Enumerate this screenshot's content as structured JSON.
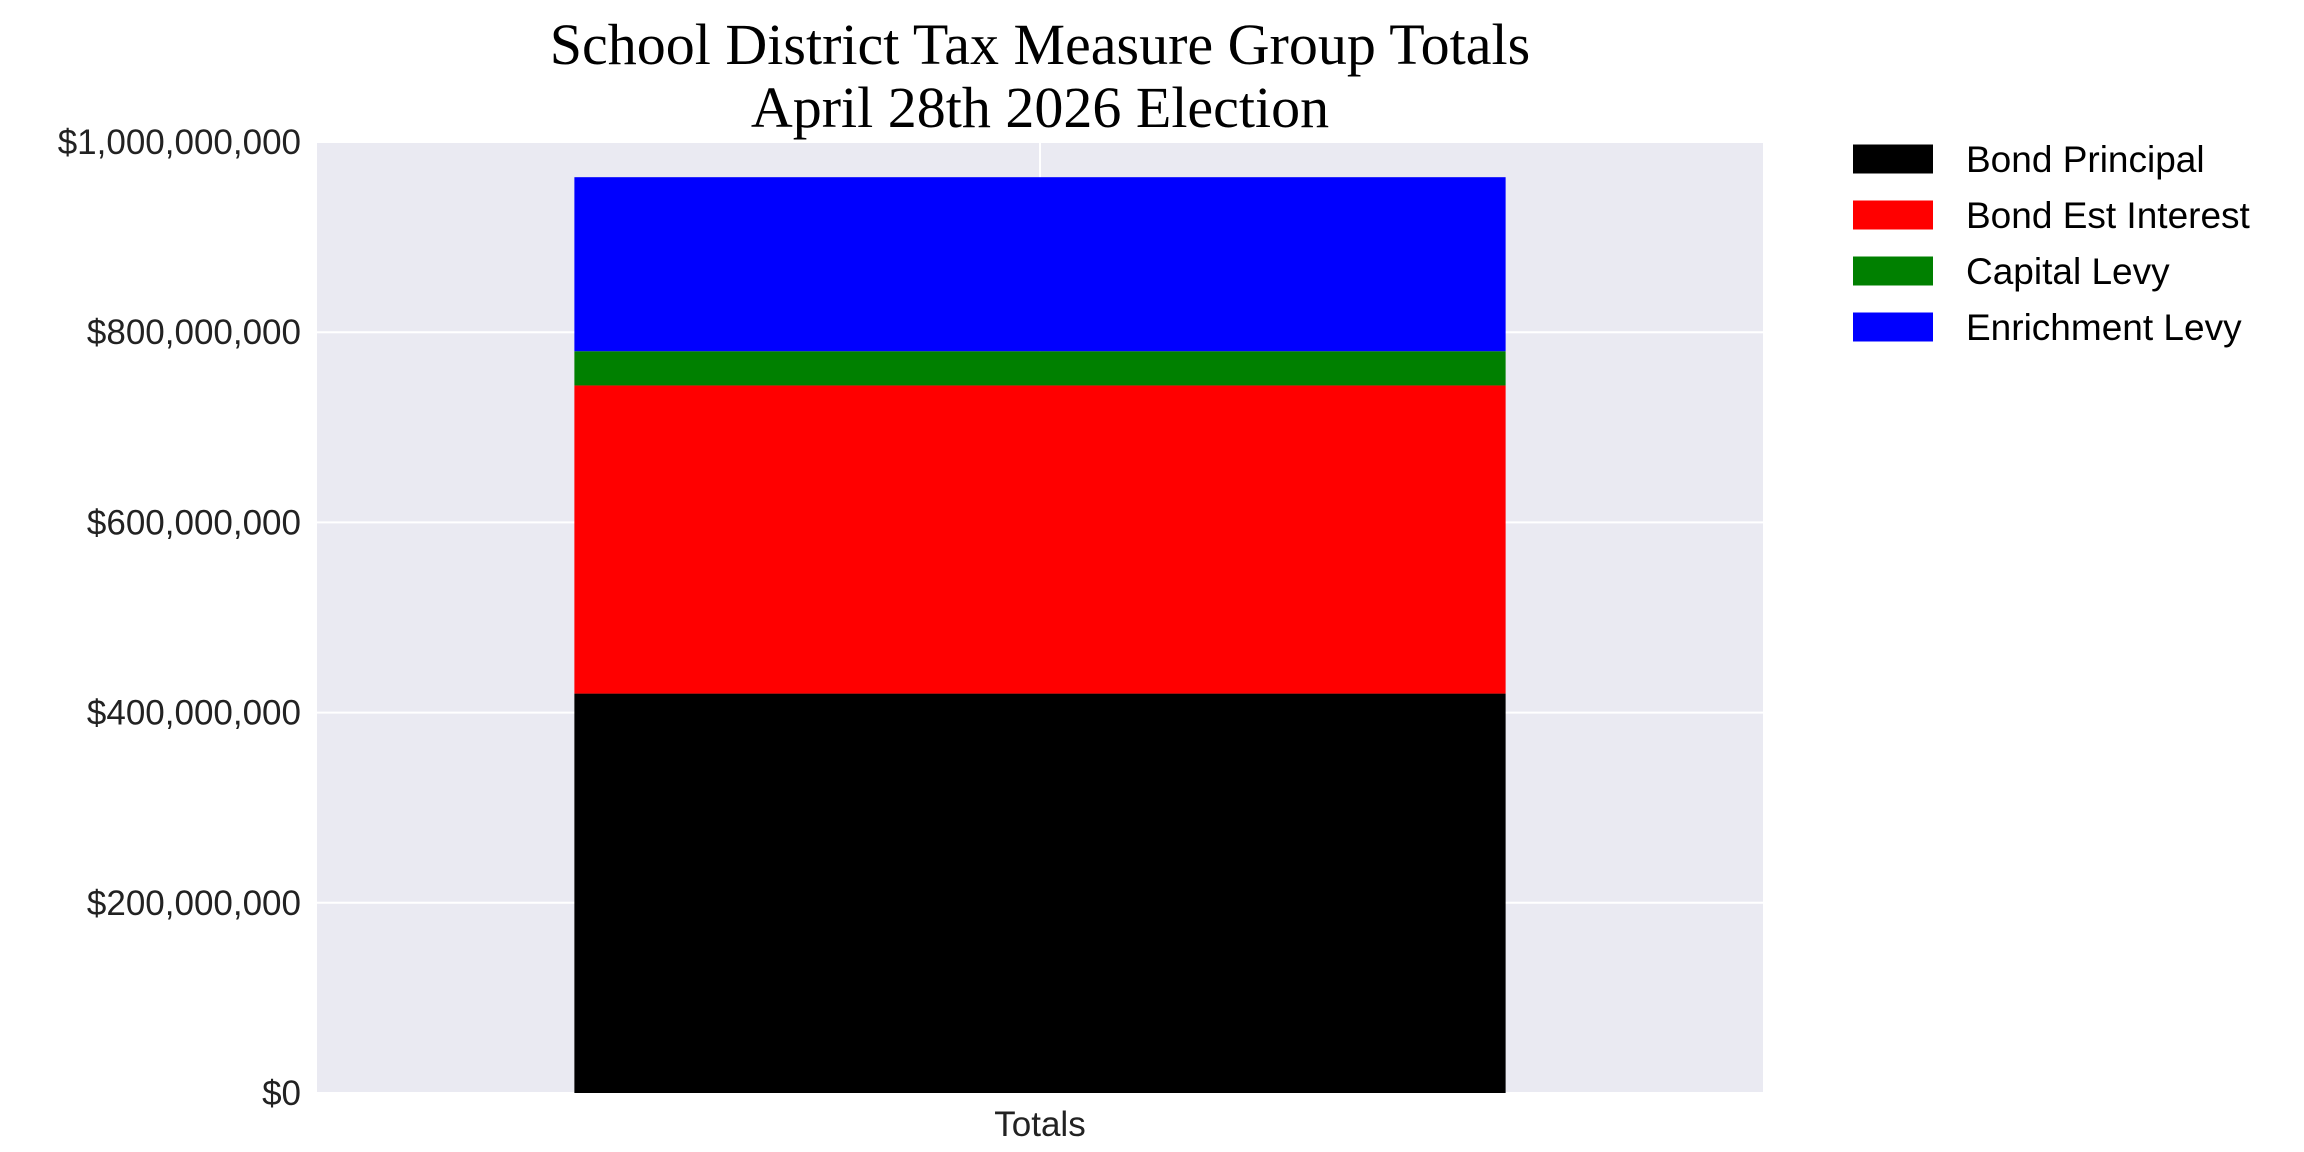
{
  "chart_data": {
    "type": "bar",
    "stacked": true,
    "title": "School District Tax Measure Group Totals",
    "subtitle": "April 28th 2026 Election",
    "xlabel": "",
    "ylabel": "",
    "categories": [
      "Totals"
    ],
    "ylim": [
      0,
      1000000000
    ],
    "y_ticks": [
      0,
      200000000,
      400000000,
      600000000,
      800000000,
      1000000000
    ],
    "y_tick_labels": [
      "$0",
      "$200,000,000",
      "$400,000,000",
      "$600,000,000",
      "$800,000,000",
      "$1,000,000,000"
    ],
    "grid": true,
    "legend_position": "outside-top-right",
    "series": [
      {
        "name": "Bond Principal",
        "color": "#000000",
        "values": [
          420000000
        ]
      },
      {
        "name": "Bond Est Interest",
        "color": "#ff0000",
        "values": [
          324000000
        ]
      },
      {
        "name": "Capital Levy",
        "color": "#008000",
        "values": [
          36000000
        ]
      },
      {
        "name": "Enrichment Levy",
        "color": "#0000ff",
        "values": [
          183000000
        ]
      }
    ]
  }
}
